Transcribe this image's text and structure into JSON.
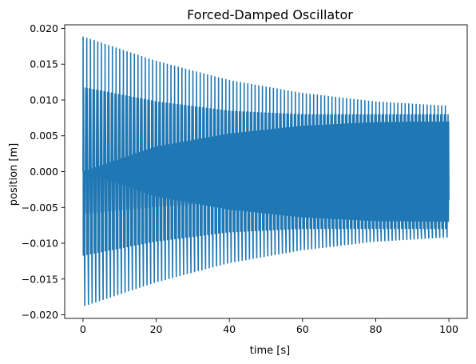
{
  "chart_data": {
    "type": "line",
    "title": "Forced-Damped Oscillator",
    "xlabel": "time [s]",
    "ylabel": "position [m]",
    "xlim": [
      -5,
      105
    ],
    "ylim": [
      -0.0205,
      0.0205
    ],
    "x_ticks": [
      0,
      20,
      40,
      60,
      80,
      100
    ],
    "x_tick_labels": [
      "0",
      "20",
      "40",
      "60",
      "80",
      "100"
    ],
    "y_ticks": [
      -0.02,
      -0.015,
      -0.01,
      -0.005,
      0.0,
      0.005,
      0.01,
      0.015,
      0.02
    ],
    "y_tick_labels": [
      "−0.020",
      "−0.015",
      "−0.010",
      "−0.005",
      "0.000",
      "0.005",
      "0.010",
      "0.015",
      "0.020"
    ],
    "grid": false,
    "legend": "none",
    "series": [
      {
        "color": "#1f77b4",
        "t_start": 0,
        "t_end": 100,
        "start_value": 0.0,
        "oscillation_count": 100,
        "envelope_time": [
          0,
          20,
          40,
          60,
          80,
          100
        ],
        "outer_envelope": [
          0.0189,
          0.0155,
          0.0128,
          0.011,
          0.0098,
          0.0092
        ],
        "inner_envelope": [
          0.0118,
          0.0098,
          0.0085,
          0.008,
          0.008,
          0.008
        ],
        "steady_core": [
          0.0,
          0.0035,
          0.0053,
          0.0064,
          0.0069,
          0.007
        ]
      }
    ]
  }
}
